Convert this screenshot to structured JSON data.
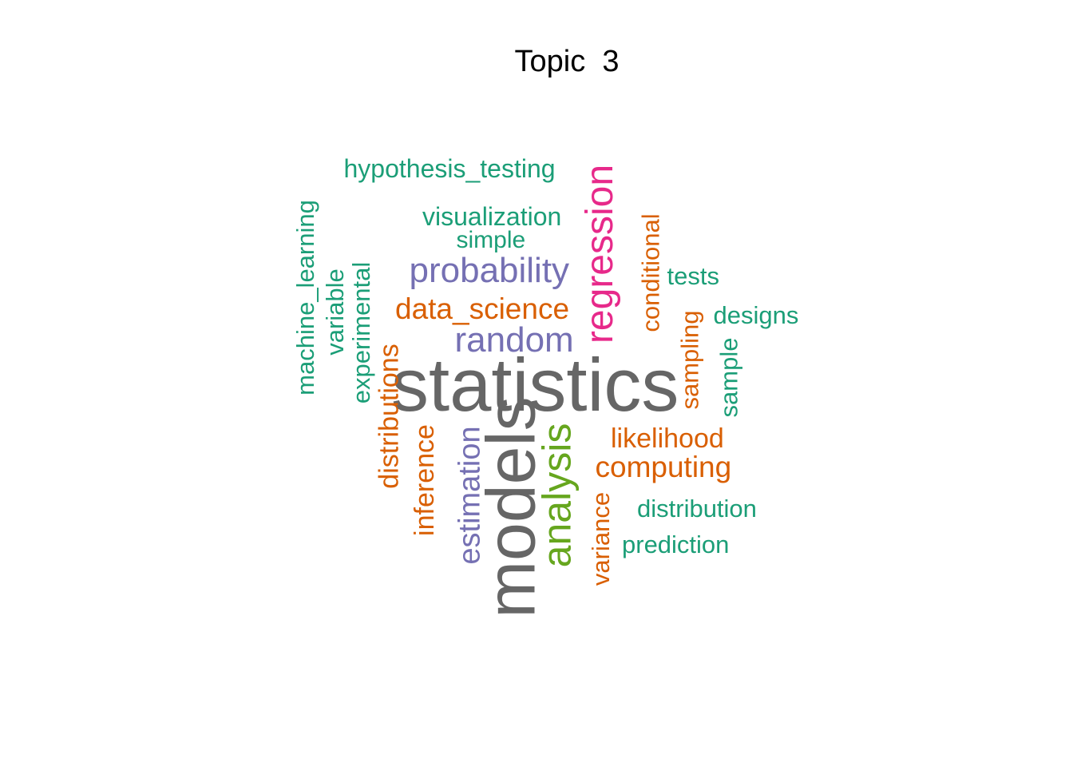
{
  "title": "Topic  3",
  "colors": {
    "green": "#1B9E77",
    "orange": "#D95F02",
    "purple": "#7570B3",
    "pink": "#E7298A",
    "lime": "#66A61E",
    "gray": "#666666"
  },
  "words": [
    {
      "text": "statistics",
      "color": "gray"
    },
    {
      "text": "models",
      "color": "gray"
    },
    {
      "text": "analysis",
      "color": "lime"
    },
    {
      "text": "regression",
      "color": "pink"
    },
    {
      "text": "probability",
      "color": "purple"
    },
    {
      "text": "random",
      "color": "purple"
    },
    {
      "text": "estimation",
      "color": "purple"
    },
    {
      "text": "data_science",
      "color": "orange"
    },
    {
      "text": "computing",
      "color": "orange"
    },
    {
      "text": "likelihood",
      "color": "orange"
    },
    {
      "text": "distributions",
      "color": "orange"
    },
    {
      "text": "inference",
      "color": "orange"
    },
    {
      "text": "conditional",
      "color": "orange"
    },
    {
      "text": "sampling",
      "color": "orange"
    },
    {
      "text": "variance",
      "color": "orange"
    },
    {
      "text": "hypothesis_testing",
      "color": "green"
    },
    {
      "text": "visualization",
      "color": "green"
    },
    {
      "text": "simple",
      "color": "green"
    },
    {
      "text": "machine_learning",
      "color": "green"
    },
    {
      "text": "variable",
      "color": "green"
    },
    {
      "text": "experimental",
      "color": "green"
    },
    {
      "text": "tests",
      "color": "green"
    },
    {
      "text": "designs",
      "color": "green"
    },
    {
      "text": "sample",
      "color": "green"
    },
    {
      "text": "distribution",
      "color": "green"
    },
    {
      "text": "prediction",
      "color": "green"
    }
  ]
}
